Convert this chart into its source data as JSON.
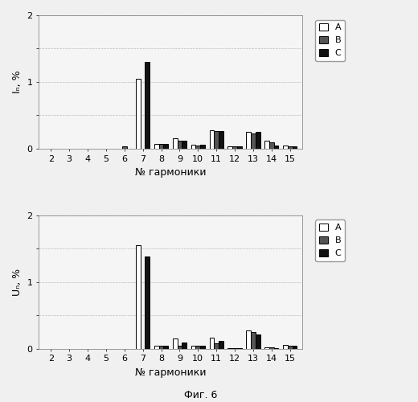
{
  "harmonics": [
    2,
    3,
    4,
    5,
    6,
    7,
    8,
    9,
    10,
    11,
    12,
    13,
    14,
    15
  ],
  "top_chart": {
    "ylabel": "Iₙ, %",
    "A": [
      0,
      0,
      0,
      0,
      0,
      1.05,
      0.07,
      0.15,
      0.06,
      0.28,
      0.04,
      0.25,
      0.12,
      0.05
    ],
    "B": [
      0,
      0,
      0,
      0,
      0.04,
      0,
      0.07,
      0.12,
      0.05,
      0.26,
      0.04,
      0.23,
      0.1,
      0.04
    ],
    "C": [
      0,
      0,
      0,
      0,
      0,
      1.3,
      0.07,
      0.12,
      0.06,
      0.26,
      0.04,
      0.25,
      0.05,
      0.04
    ]
  },
  "bottom_chart": {
    "ylabel": "Uₙ, %",
    "A": [
      0,
      0,
      0,
      0,
      0,
      1.55,
      0.05,
      0.15,
      0.04,
      0.17,
      0.01,
      0.28,
      0.02,
      0.06
    ],
    "B": [
      0,
      0,
      0,
      0,
      0,
      0,
      0.05,
      0.04,
      0.04,
      0.08,
      0.01,
      0.25,
      0.02,
      0.04
    ],
    "C": [
      0,
      0,
      0,
      0,
      0,
      1.38,
      0.04,
      0.1,
      0.05,
      0.12,
      0.01,
      0.22,
      0.01,
      0.04
    ]
  },
  "xlabel": "№ гармоники",
  "figure_label": "Фиг. 6",
  "legend_labels": [
    "A",
    "B",
    "C"
  ],
  "colors_face": [
    "#ffffff",
    "#555555",
    "#111111"
  ],
  "colors_hatch": [
    null,
    "///",
    null
  ],
  "edge_color": "#000000",
  "ylim": [
    0,
    2
  ],
  "yticks": [
    0,
    0.5,
    1.0,
    1.5,
    2.0
  ],
  "ytick_labels": [
    "0",
    "",
    "1",
    "",
    "2"
  ],
  "bar_width": 0.25,
  "background_color": "#f5f5f5",
  "grid_color": "#bbbbbb",
  "label_fontsize": 9,
  "tick_fontsize": 8,
  "legend_fontsize": 8
}
